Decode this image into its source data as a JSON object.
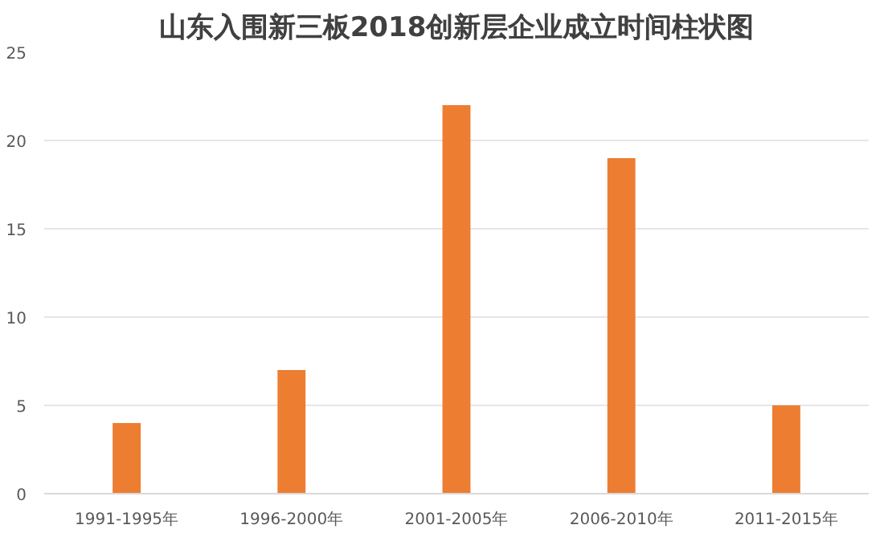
{
  "chart_data": {
    "type": "bar",
    "title": "山东入围新三板2018创新层企业成立时间柱状图",
    "categories": [
      "1991-1995年",
      "1996-2000年",
      "2001-2005年",
      "2006-2010年",
      "2011-2015年"
    ],
    "values": [
      4,
      7,
      22,
      19,
      5
    ],
    "color": "#ed7d31",
    "ylim": [
      0,
      25
    ],
    "yticks": [
      0,
      5,
      10,
      15,
      20,
      25
    ],
    "grid": "y"
  }
}
